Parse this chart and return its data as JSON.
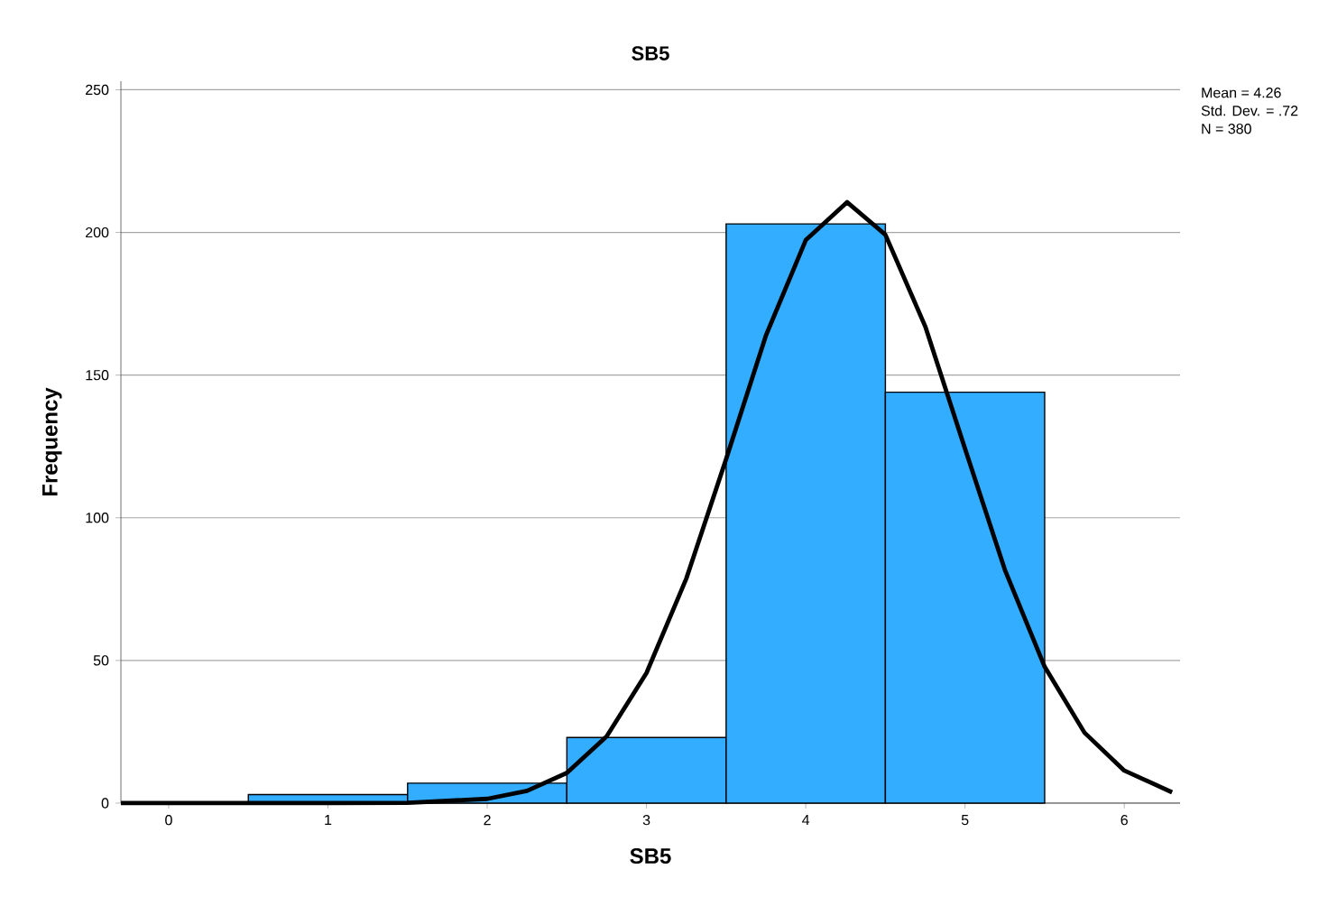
{
  "chart_data": {
    "type": "histogram",
    "title": "SB5",
    "xlabel": "SB5",
    "ylabel": "Frequency",
    "bins": [
      0.5,
      1.5,
      2.5,
      3.5,
      4.5,
      5.5
    ],
    "values": [
      3,
      7,
      23,
      203,
      144
    ],
    "color": "#33adff",
    "series": [
      {
        "type": "line",
        "color": "#000000",
        "x": [
          -0.3,
          1,
          1.5,
          2,
          2.25,
          2.5,
          2.75,
          3,
          3.25,
          3.5,
          3.75,
          4,
          4.26,
          4.5,
          4.75,
          5,
          5.25,
          5.5,
          5.75,
          6,
          6.3
        ],
        "values": [
          0,
          0,
          0.1,
          1.5,
          4.3,
          10.6,
          23.4,
          45.6,
          78.7,
          120.6,
          163.9,
          197.3,
          210.6,
          199.2,
          167.1,
          124.2,
          81.8,
          47.8,
          24.7,
          11.4,
          3.8
        ]
      }
    ],
    "xlim": [
      -0.3,
      6.35
    ],
    "ylim": [
      0,
      253
    ],
    "xticks": [
      0,
      1,
      2,
      3,
      4,
      5,
      6
    ],
    "yticks": [
      0,
      50,
      100,
      150,
      200,
      250
    ],
    "grid": "y",
    "annotations": [
      "Mean = 4.26",
      "Std. Dev. = .72",
      "N = 380"
    ]
  }
}
